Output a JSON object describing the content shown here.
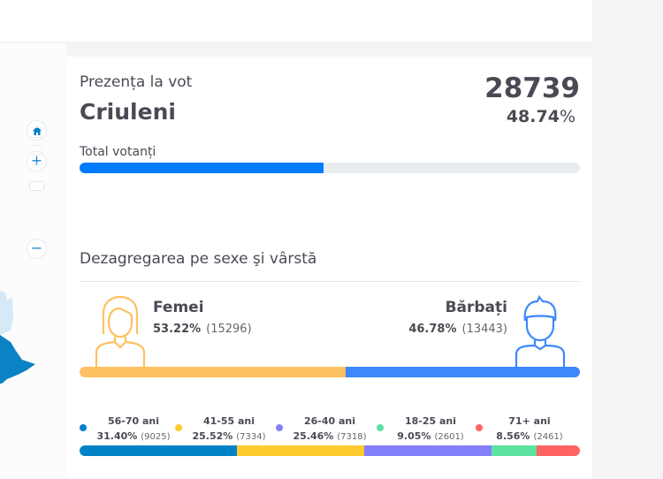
{
  "turnout": {
    "title": "Prezența la vot",
    "region": "Criuleni",
    "count": "28739",
    "percent_value": "48.74",
    "percent_sign": "%",
    "bar_label": "Total votanți",
    "fill": 0.4874,
    "colors": {
      "fill": "#007bff",
      "track": "#e9ecef"
    }
  },
  "map_controls": {
    "home": "home-icon",
    "zoom_in": "+",
    "zoom_out": "−"
  },
  "breakdown": {
    "title": "Dezagregarea pe sexe şi vârstă",
    "women": {
      "label": "Femei",
      "percent": "53.22%",
      "count": "(15296)",
      "share": 0.5322,
      "color": "#ffc062"
    },
    "men": {
      "label": "Bărbați",
      "percent": "46.78%",
      "count": "(13443)",
      "share": 0.4678,
      "color": "#3d88fa"
    },
    "ages": [
      {
        "label": "56-70 ani",
        "percent": "31.40%",
        "count": "(9025)",
        "share": 0.314,
        "color": "#0082c8"
      },
      {
        "label": "41-55 ani",
        "percent": "25.52%",
        "count": "(7334)",
        "share": 0.2552,
        "color": "#ffcb2f"
      },
      {
        "label": "26-40 ani",
        "percent": "25.46%",
        "count": "(7318)",
        "share": 0.2546,
        "color": "#8480fb"
      },
      {
        "label": "18-25 ani",
        "percent": "9.05%",
        "count": "(2601)",
        "share": 0.0905,
        "color": "#5de2a0"
      },
      {
        "label": "71+ ani",
        "percent": "8.56%",
        "count": "(2461)",
        "share": 0.0856,
        "color": "#ff6363"
      }
    ]
  }
}
